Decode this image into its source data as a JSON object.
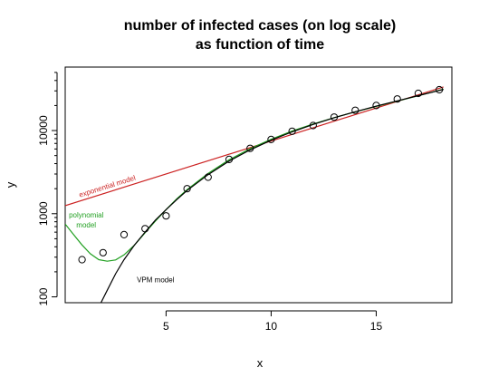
{
  "chart_data": {
    "type": "scatter",
    "title": [
      "number of infected cases (on log scale)",
      "as function of time"
    ],
    "xlabel": "x",
    "ylabel": "y",
    "xlim": [
      0.2,
      18.6
    ],
    "ylim": [
      85,
      58000
    ],
    "y_scale": "log",
    "x_ticks": [
      5,
      10,
      15
    ],
    "y_ticks": [
      100,
      1000,
      10000
    ],
    "y_minor_ticks": [
      200,
      300,
      400,
      500,
      600,
      700,
      800,
      900,
      2000,
      3000,
      4000,
      5000,
      6000,
      7000,
      8000,
      9000,
      20000,
      30000,
      40000,
      50000
    ],
    "grid": false,
    "points": {
      "x": [
        1,
        2,
        3,
        4,
        5,
        6,
        7,
        8,
        9,
        10,
        11,
        12,
        13,
        14,
        15,
        16,
        17,
        18
      ],
      "y": [
        280,
        340,
        560,
        660,
        940,
        2000,
        2750,
        4500,
        6100,
        7800,
        9800,
        11500,
        14500,
        17500,
        20000,
        24000,
        28000,
        31000
      ]
    },
    "series": [
      {
        "label": "exponential model",
        "color": "#cc2222",
        "label_lines": [
          "exponential model"
        ],
        "x": [
          0.2,
          18.2
        ],
        "y": [
          1250,
          33500
        ]
      },
      {
        "label": "polynomial model",
        "color": "#22a022",
        "label_lines": [
          "polynomial",
          "model"
        ],
        "x": [
          0.2,
          0.6,
          1.0,
          1.4,
          1.8,
          2.2,
          2.6,
          3.0,
          3.5,
          4.0,
          4.5,
          5.0,
          5.5,
          6.0,
          7.0,
          8.0,
          9.0,
          10.0,
          11.0,
          12.0,
          13.0,
          14.0,
          15.0,
          16.0,
          17.0,
          18.2
        ],
        "y": [
          750,
          560,
          420,
          330,
          280,
          268,
          278,
          320,
          420,
          590,
          820,
          1120,
          1500,
          1950,
          3050,
          4450,
          6050,
          7850,
          9850,
          12000,
          14300,
          16800,
          19500,
          22600,
          26200,
          31500
        ]
      },
      {
        "label": "VPM model",
        "color": "#000000",
        "label_lines": [
          "VPM model"
        ],
        "x": [
          1.9,
          2.2,
          2.6,
          3.0,
          3.5,
          4.0,
          4.5,
          5.0,
          5.5,
          6.0,
          7.0,
          8.0,
          9.0,
          10.0,
          11.0,
          12.0,
          13.0,
          14.0,
          15.0,
          16.0,
          17.0,
          18.2
        ],
        "y": [
          85,
          120,
          190,
          280,
          420,
          600,
          840,
          1120,
          1470,
          1900,
          2950,
          4300,
          5850,
          7650,
          9650,
          11850,
          14250,
          16850,
          19650,
          22750,
          26300,
          31200
        ]
      }
    ]
  }
}
